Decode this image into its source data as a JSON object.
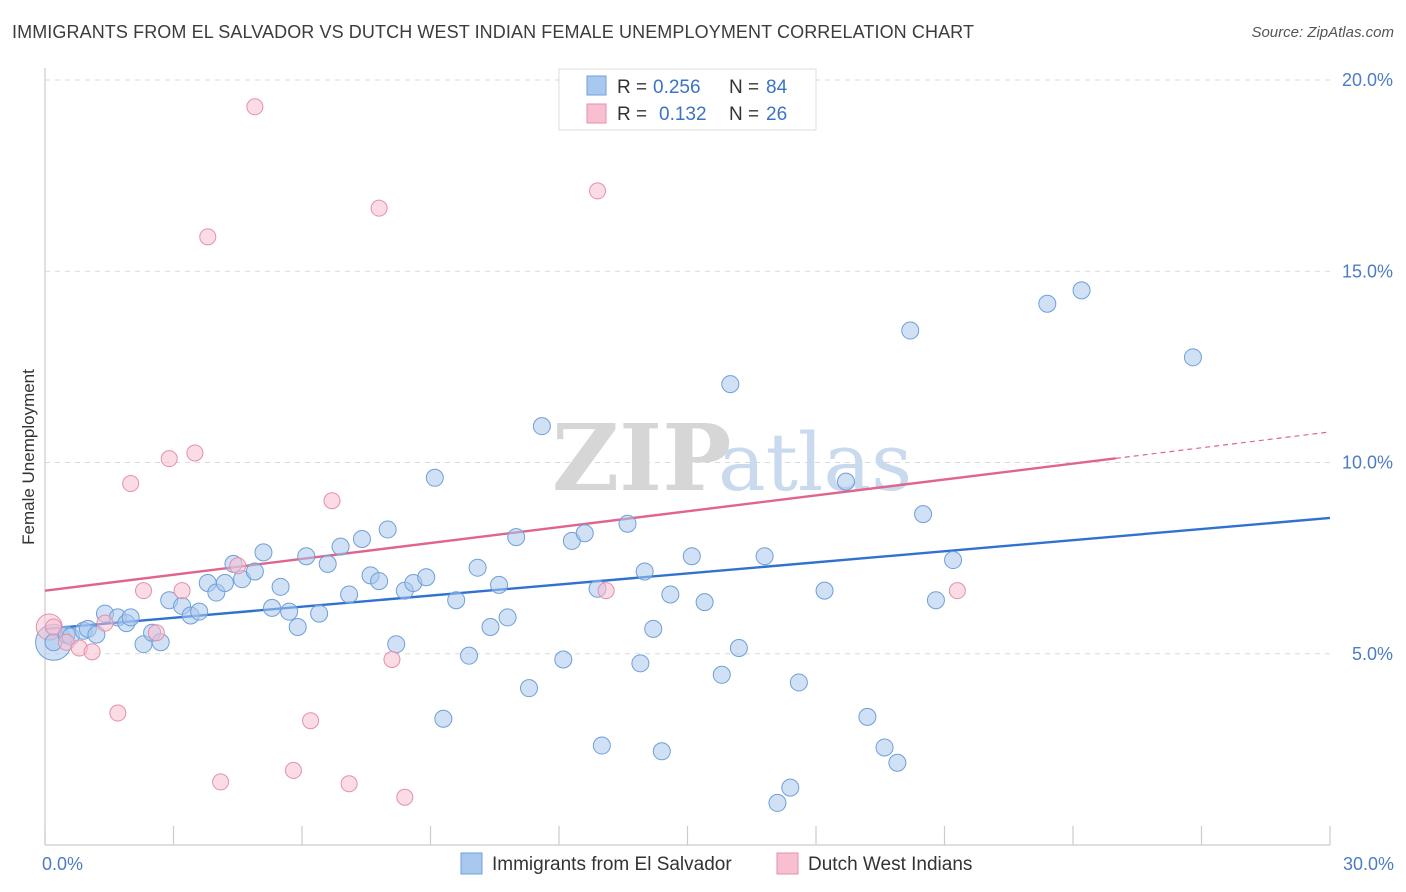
{
  "title": "IMMIGRANTS FROM EL SALVADOR VS DUTCH WEST INDIAN FEMALE UNEMPLOYMENT CORRELATION CHART",
  "source": "Source: ZipAtlas.com",
  "watermark": {
    "zip": "ZIP",
    "atlas": "atlas"
  },
  "chart_data": {
    "type": "scatter",
    "title": "IMMIGRANTS FROM EL SALVADOR VS DUTCH WEST INDIAN FEMALE UNEMPLOYMENT CORRELATION CHART",
    "xlabel": "",
    "ylabel": "Female Unemployment",
    "xlim": [
      0,
      30
    ],
    "ylim": [
      0,
      20
    ],
    "x_tick_labels": [
      "0.0%",
      "30.0%"
    ],
    "y_ticks": [
      5,
      10,
      15,
      20
    ],
    "y_tick_labels": [
      "5.0%",
      "10.0%",
      "15.0%",
      "20.0%"
    ],
    "grid": true,
    "legend_position": "top-center",
    "stats": [
      {
        "r_label": "R =",
        "r": "0.256",
        "n_label": "N =",
        "n": "84"
      },
      {
        "r_label": "R =",
        "r": "0.132",
        "n_label": "N =",
        "n": "26"
      }
    ],
    "series": [
      {
        "name": "Immigrants from El Salvador",
        "color": "#a9c8ef",
        "stroke": "#6f9fd8",
        "line_color": "#2f72d0",
        "trend": {
          "x": [
            0,
            30
          ],
          "y": [
            5.65,
            8.55
          ],
          "dashed_from": null
        },
        "points": [
          [
            0.2,
            5.3
          ],
          [
            0.5,
            5.5
          ],
          [
            0.6,
            5.45
          ],
          [
            0.9,
            5.6
          ],
          [
            1.0,
            5.65
          ],
          [
            1.2,
            5.5
          ],
          [
            1.4,
            6.05
          ],
          [
            1.7,
            5.95
          ],
          [
            1.9,
            5.8
          ],
          [
            2.0,
            5.95
          ],
          [
            2.3,
            5.25
          ],
          [
            2.5,
            5.55
          ],
          [
            2.7,
            5.3
          ],
          [
            2.9,
            6.4
          ],
          [
            3.2,
            6.25
          ],
          [
            3.4,
            6.0
          ],
          [
            3.6,
            6.1
          ],
          [
            3.8,
            6.85
          ],
          [
            4.0,
            6.6
          ],
          [
            4.2,
            6.85
          ],
          [
            4.4,
            7.35
          ],
          [
            4.6,
            6.95
          ],
          [
            4.9,
            7.15
          ],
          [
            5.1,
            7.65
          ],
          [
            5.3,
            6.2
          ],
          [
            5.5,
            6.75
          ],
          [
            5.7,
            6.1
          ],
          [
            5.9,
            5.7
          ],
          [
            6.1,
            7.55
          ],
          [
            6.4,
            6.05
          ],
          [
            6.6,
            7.35
          ],
          [
            6.9,
            7.8
          ],
          [
            7.1,
            6.55
          ],
          [
            7.4,
            8.0
          ],
          [
            7.6,
            7.05
          ],
          [
            7.8,
            6.9
          ],
          [
            8.0,
            8.25
          ],
          [
            8.2,
            5.25
          ],
          [
            8.4,
            6.65
          ],
          [
            8.6,
            6.85
          ],
          [
            8.9,
            7.0
          ],
          [
            9.1,
            9.6
          ],
          [
            9.3,
            3.3
          ],
          [
            9.6,
            6.4
          ],
          [
            9.9,
            4.95
          ],
          [
            10.1,
            7.25
          ],
          [
            10.4,
            5.7
          ],
          [
            10.6,
            6.8
          ],
          [
            10.8,
            5.95
          ],
          [
            11.0,
            8.05
          ],
          [
            11.3,
            4.1
          ],
          [
            11.6,
            10.95
          ],
          [
            12.1,
            4.85
          ],
          [
            12.3,
            7.95
          ],
          [
            12.6,
            8.15
          ],
          [
            12.9,
            6.7
          ],
          [
            13.0,
            2.6
          ],
          [
            13.6,
            8.4
          ],
          [
            13.9,
            4.75
          ],
          [
            14.0,
            7.15
          ],
          [
            14.2,
            5.65
          ],
          [
            14.4,
            2.45
          ],
          [
            14.6,
            6.55
          ],
          [
            15.1,
            7.55
          ],
          [
            15.4,
            6.35
          ],
          [
            15.8,
            4.45
          ],
          [
            16.0,
            12.05
          ],
          [
            16.2,
            5.15
          ],
          [
            16.8,
            7.55
          ],
          [
            17.1,
            1.1
          ],
          [
            17.4,
            1.5
          ],
          [
            17.6,
            4.25
          ],
          [
            18.2,
            6.65
          ],
          [
            18.7,
            9.5
          ],
          [
            19.2,
            3.35
          ],
          [
            19.6,
            2.55
          ],
          [
            19.9,
            2.15
          ],
          [
            20.2,
            13.45
          ],
          [
            20.5,
            8.65
          ],
          [
            20.8,
            6.4
          ],
          [
            21.2,
            7.45
          ],
          [
            23.4,
            14.15
          ],
          [
            24.2,
            14.5
          ],
          [
            26.8,
            12.75
          ]
        ]
      },
      {
        "name": "Dutch West Indians",
        "color": "#f7bfd0",
        "stroke": "#e58faa",
        "line_color": "#e0658d",
        "trend": {
          "x": [
            0,
            30
          ],
          "y": [
            6.65,
            10.8
          ],
          "dashed_from": 25
        },
        "points": [
          [
            0.2,
            5.7
          ],
          [
            0.5,
            5.3
          ],
          [
            0.8,
            5.15
          ],
          [
            1.1,
            5.05
          ],
          [
            1.4,
            5.8
          ],
          [
            1.7,
            3.45
          ],
          [
            2.0,
            9.45
          ],
          [
            2.3,
            6.65
          ],
          [
            2.6,
            5.55
          ],
          [
            2.9,
            10.1
          ],
          [
            3.2,
            6.65
          ],
          [
            3.5,
            10.25
          ],
          [
            3.8,
            15.9
          ],
          [
            4.1,
            1.65
          ],
          [
            4.5,
            7.3
          ],
          [
            4.9,
            19.3
          ],
          [
            5.8,
            1.95
          ],
          [
            6.2,
            3.25
          ],
          [
            6.7,
            9.0
          ],
          [
            7.1,
            1.6
          ],
          [
            7.8,
            16.65
          ],
          [
            8.1,
            4.85
          ],
          [
            8.4,
            1.25
          ],
          [
            12.9,
            17.1
          ],
          [
            13.1,
            6.65
          ],
          [
            21.3,
            6.65
          ]
        ]
      }
    ]
  }
}
